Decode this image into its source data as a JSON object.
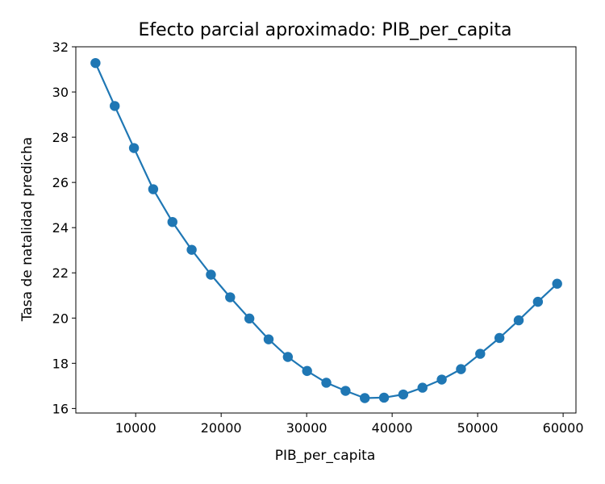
{
  "chart_data": {
    "type": "line",
    "title": "Efecto parcial aproximado: PIB_per_capita",
    "xlabel": "PIB_per_capita",
    "ylabel": "Tasa de natalidad predicha",
    "xlim": [
      3000,
      61500
    ],
    "ylim": [
      15.8,
      32.0
    ],
    "xticks": [
      10000,
      20000,
      30000,
      40000,
      50000,
      60000
    ],
    "yticks": [
      16,
      18,
      20,
      22,
      24,
      26,
      28,
      30,
      32
    ],
    "grid": false,
    "series": [
      {
        "color": "#1f77b4",
        "points": [
          {
            "x": 5300,
            "y": 31.28
          },
          {
            "x": 7550,
            "y": 29.38
          },
          {
            "x": 9800,
            "y": 27.52
          },
          {
            "x": 12050,
            "y": 25.7
          },
          {
            "x": 14300,
            "y": 24.25
          },
          {
            "x": 16550,
            "y": 23.02
          },
          {
            "x": 18800,
            "y": 21.92
          },
          {
            "x": 21050,
            "y": 20.92
          },
          {
            "x": 23300,
            "y": 19.98
          },
          {
            "x": 25550,
            "y": 19.06
          },
          {
            "x": 27800,
            "y": 18.28
          },
          {
            "x": 30050,
            "y": 17.66
          },
          {
            "x": 32300,
            "y": 17.14
          },
          {
            "x": 34550,
            "y": 16.78
          },
          {
            "x": 36800,
            "y": 16.46
          },
          {
            "x": 39050,
            "y": 16.48
          },
          {
            "x": 41300,
            "y": 16.62
          },
          {
            "x": 43550,
            "y": 16.92
          },
          {
            "x": 45800,
            "y": 17.28
          },
          {
            "x": 48050,
            "y": 17.74
          },
          {
            "x": 50300,
            "y": 18.42
          },
          {
            "x": 52550,
            "y": 19.12
          },
          {
            "x": 54800,
            "y": 19.9
          },
          {
            "x": 57050,
            "y": 20.72
          },
          {
            "x": 59300,
            "y": 21.52
          }
        ]
      }
    ]
  }
}
